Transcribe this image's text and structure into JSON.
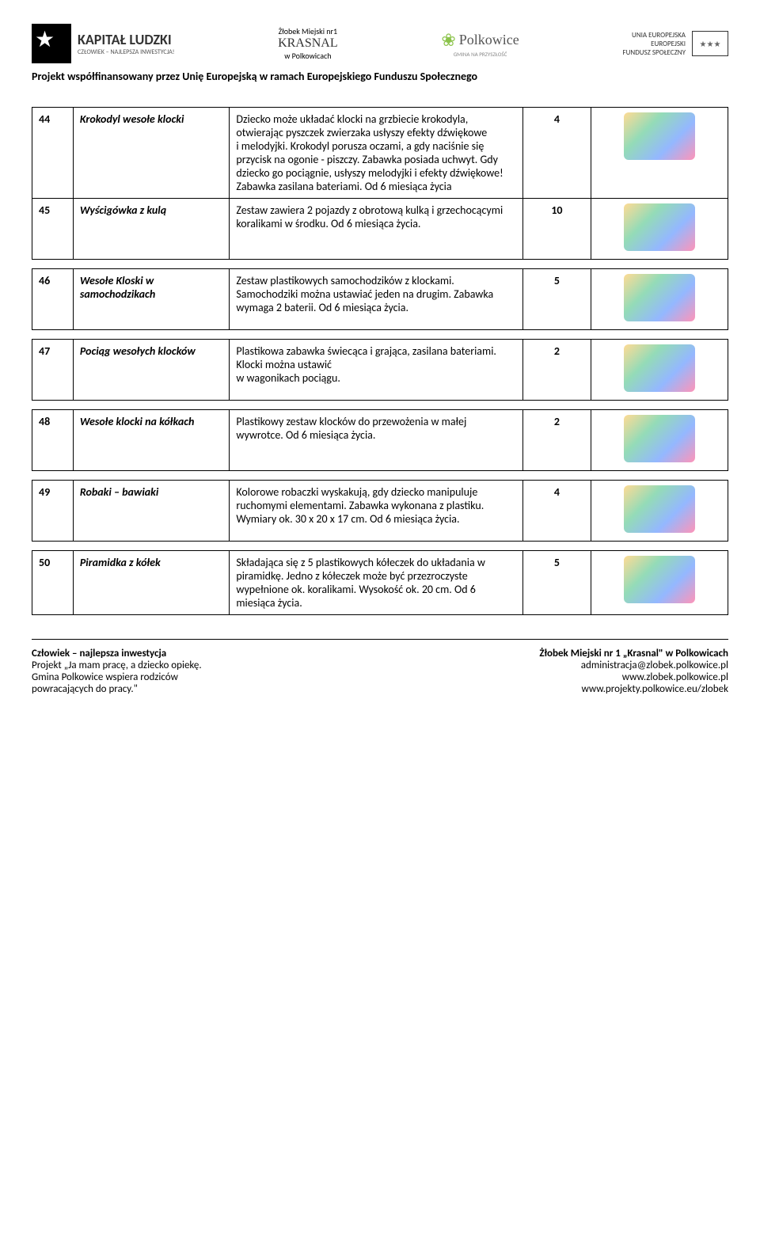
{
  "header": {
    "kapital_title": "KAPITAŁ LUDZKI",
    "kapital_sub": "CZŁOWIEK – NAJLEPSZA INWESTYCJA!",
    "krasnal_line1": "Żłobek Miejski nr1",
    "krasnal_line2": "KRASNAL",
    "krasnal_line3": "w Polkowicach",
    "polkowice": "Polkowice",
    "polkowice_sub": "GMINA NA PRZYSZŁOŚĆ",
    "eu_line1": "UNIA EUROPEJSKA",
    "eu_line2": "EUROPEJSKI",
    "eu_line3": "FUNDUSZ SPOŁECZNY",
    "eu_flag": "★★★",
    "project_bar": "Projekt współfinansowany przez Unię Europejską w ramach Europejskiego Funduszu Społecznego"
  },
  "rows": [
    {
      "num": "44",
      "name": "Krokodyl wesołe klocki",
      "desc": "Dziecko może układać klocki na grzbiecie krokodyla, otwierając pyszczek zwierzaka usłyszy efekty dźwiękowe\ni melodyjki. Krokodyl porusza oczami, a gdy naciśnie się przycisk na ogonie - piszczy. Zabawka posiada uchwyt. Gdy dziecko go pociągnie, usłyszy melodyjki i efekty dźwiękowe! Zabawka zasilana bateriami. Od 6 miesiąca życia",
      "qty": "4"
    },
    {
      "num": "45",
      "name": "Wyścigówka z kulą",
      "desc": "Zestaw zawiera 2  pojazdy z obrotową kulką i grzechocącymi koralikami w środku. Od 6 miesiąca życia.",
      "qty": "10"
    },
    {
      "num": "46",
      "name": "Wesołe Kloski w samochodzikach",
      "desc": "Zestaw plastikowych samochodzików z klockami. Samochodziki można ustawiać jeden na drugim. Zabawka wymaga 2 baterii. Od 6 miesiąca życia.",
      "qty": "5"
    },
    {
      "num": "47",
      "name": "Pociąg wesołych klocków",
      "desc": "Plastikowa zabawka świecąca i grająca, zasilana bateriami. Klocki można ustawić\nw wagonikach pociągu.",
      "qty": "2"
    },
    {
      "num": "48",
      "name": "Wesołe  klocki na kółkach",
      "desc": "Plastikowy zestaw klocków do przewożenia w  małej wywrotce. Od 6 miesiąca życia.",
      "qty": "2"
    },
    {
      "num": "49",
      "name": "Robaki – bawiaki",
      "desc": "Kolorowe robaczki wyskakują, gdy dziecko manipuluje ruchomymi elementami. Zabawka wykonana z plastiku. Wymiary ok. 30 x 20 x 17 cm. Od 6 miesiąca życia.",
      "qty": "4"
    },
    {
      "num": "50",
      "name": "Piramidka z kółek",
      "desc": "Składająca się z 5 plastikowych kółeczek do układania w piramidkę. Jedno z kółeczek może być przezroczyste wypełnione ok. koralikami. Wysokość ok. 20 cm. Od 6 miesiąca życia.",
      "qty": "5"
    }
  ],
  "footer": {
    "left_title": "Człowiek – najlepsza inwestycja",
    "left_line1": "Projekt „Ja mam pracę, a dziecko opiekę.",
    "left_line2": "Gmina Polkowice wspiera rodziców",
    "left_line3": "powracających do pracy.\"",
    "right_title": "Żłobek Miejski nr 1 „Krasnal\" w Polkowicach",
    "right_line1": "administracja@zlobek.polkowice.pl",
    "right_line2": "www.zlobek.polkowice.pl",
    "right_line3": "www.projekty.polkowice.eu/zlobek"
  }
}
